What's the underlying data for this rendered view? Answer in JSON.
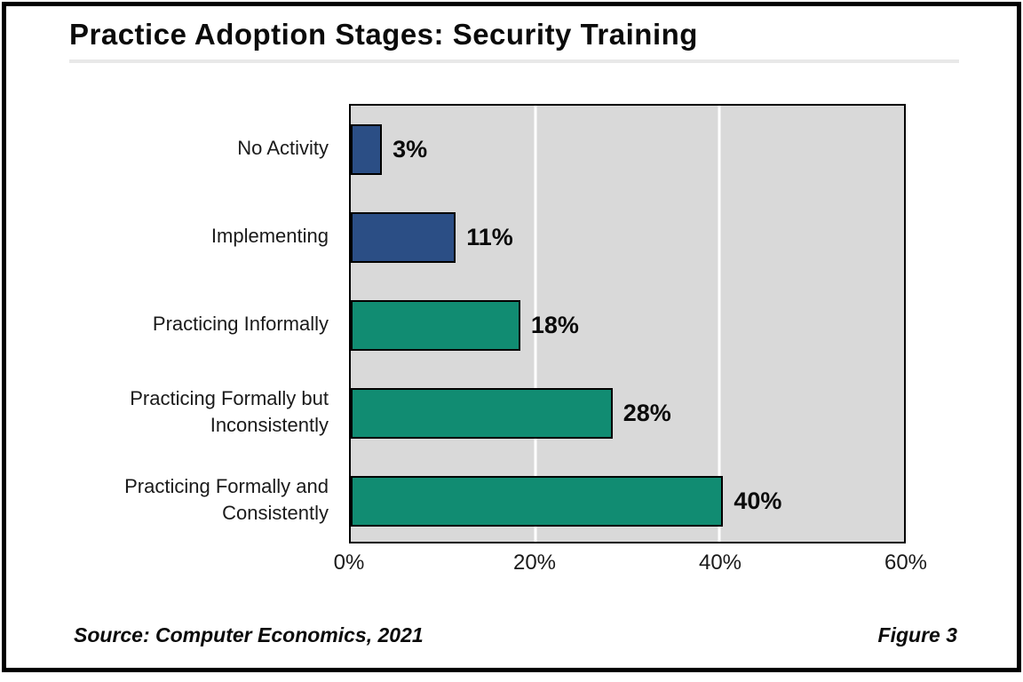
{
  "title": "Practice Adoption Stages: Security Training",
  "footer": {
    "source": "Source: Computer Economics, 2021",
    "figure_label": "Figure 3"
  },
  "colors": {
    "blue_bar": "#2B4E85",
    "teal_bar": "#118C72",
    "plot_background": "#D9D9D9",
    "bar_border": "#000000",
    "gridline": "#FFFFFF",
    "title_rule": "#E8E8E8",
    "frame_border": "#000000"
  },
  "chart_data": {
    "type": "bar",
    "orientation": "horizontal",
    "title": "Practice Adoption Stages: Security Training",
    "categories": [
      "No Activity",
      "Implementing",
      "Practicing Informally",
      "Practicing Formally but Inconsistently",
      "Practicing Formally and Consistently"
    ],
    "values": [
      3,
      11,
      18,
      28,
      40
    ],
    "value_labels": [
      "3%",
      "11%",
      "18%",
      "28%",
      "40%"
    ],
    "bar_colors": [
      "#2B4E85",
      "#2B4E85",
      "#118C72",
      "#118C72",
      "#118C72"
    ],
    "x_ticks": [
      "0%",
      "20%",
      "40%",
      "60%"
    ],
    "x_tick_values": [
      0,
      20,
      40,
      60
    ],
    "xlim": [
      0,
      60
    ],
    "gridlines_at": [
      20,
      40
    ],
    "grid": true,
    "legend": false,
    "xlabel": "",
    "ylabel": ""
  }
}
